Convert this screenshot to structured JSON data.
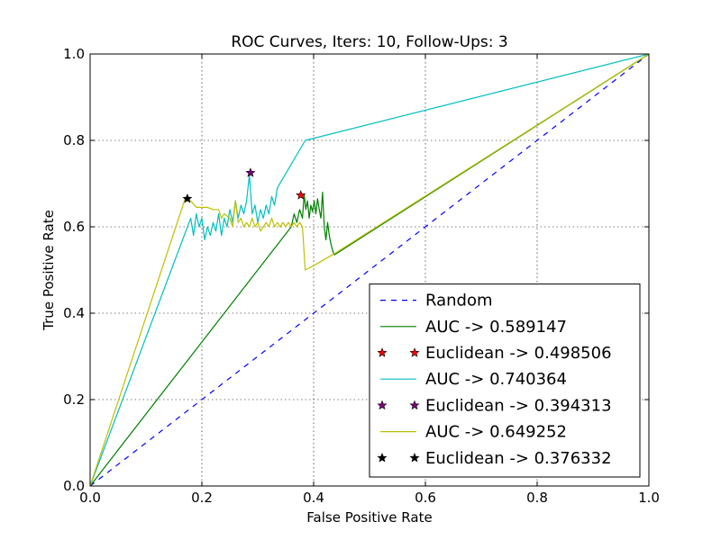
{
  "chart_data": {
    "type": "line",
    "title": "ROC Curves, Iters: 10, Follow-Ups: 3",
    "xlabel": "False Positive Rate",
    "ylabel": "True Positive Rate",
    "xlim": [
      0.0,
      1.0
    ],
    "ylim": [
      0.0,
      1.0
    ],
    "xticks": [
      "0.0",
      "0.2",
      "0.4",
      "0.6",
      "0.8",
      "1.0"
    ],
    "yticks": [
      "0.0",
      "0.2",
      "0.4",
      "0.6",
      "0.8",
      "1.0"
    ],
    "grid": true,
    "legend_position": "lower-right",
    "series": [
      {
        "name": "Random",
        "kind": "line",
        "dash": "dashed",
        "color": "#0000ff",
        "x": [
          0.0,
          1.0
        ],
        "y": [
          0.0,
          1.0
        ]
      },
      {
        "name": "AUC -> 0.589147",
        "kind": "line",
        "color": "#008000",
        "x": [
          0.0,
          0.36,
          0.365,
          0.37,
          0.375,
          0.38,
          0.383,
          0.386,
          0.389,
          0.392,
          0.395,
          0.398,
          0.401,
          0.404,
          0.407,
          0.41,
          0.413,
          0.416,
          0.419,
          0.422,
          0.425,
          0.428,
          0.431,
          0.434,
          0.437,
          1.0
        ],
        "y": [
          0.0,
          0.6,
          0.63,
          0.61,
          0.64,
          0.62,
          0.675,
          0.64,
          0.66,
          0.62,
          0.65,
          0.635,
          0.66,
          0.63,
          0.665,
          0.64,
          0.62,
          0.68,
          0.6,
          0.57,
          0.61,
          0.58,
          0.56,
          0.545,
          0.535,
          1.0
        ]
      },
      {
        "name": "Euclidean -> 0.498506",
        "kind": "marker",
        "marker": "star",
        "color": "#ff0000",
        "x": [
          0.377
        ],
        "y": [
          0.673
        ]
      },
      {
        "name": "AUC -> 0.740364",
        "kind": "line",
        "color": "#00bfbf",
        "x": [
          0.0,
          0.18,
          0.185,
          0.19,
          0.195,
          0.2,
          0.205,
          0.21,
          0.215,
          0.22,
          0.225,
          0.23,
          0.235,
          0.24,
          0.245,
          0.25,
          0.255,
          0.26,
          0.265,
          0.27,
          0.275,
          0.28,
          0.285,
          0.29,
          0.295,
          0.3,
          0.305,
          0.31,
          0.315,
          0.32,
          0.325,
          0.33,
          0.335,
          0.385,
          1.0
        ],
        "y": [
          0.0,
          0.62,
          0.58,
          0.63,
          0.6,
          0.62,
          0.57,
          0.6,
          0.58,
          0.61,
          0.59,
          0.63,
          0.58,
          0.62,
          0.6,
          0.64,
          0.61,
          0.66,
          0.62,
          0.65,
          0.63,
          0.66,
          0.72,
          0.63,
          0.65,
          0.61,
          0.64,
          0.62,
          0.65,
          0.63,
          0.67,
          0.65,
          0.69,
          0.8,
          1.0
        ]
      },
      {
        "name": "Euclidean -> 0.394313",
        "kind": "marker",
        "marker": "star",
        "color": "#800080",
        "x": [
          0.287
        ],
        "y": [
          0.725
        ]
      },
      {
        "name": "AUC -> 0.649252",
        "kind": "line",
        "color": "#bfbf00",
        "x": [
          0.0,
          0.17,
          0.18,
          0.19,
          0.2,
          0.21,
          0.22,
          0.23,
          0.235,
          0.24,
          0.25,
          0.255,
          0.26,
          0.265,
          0.27,
          0.275,
          0.28,
          0.285,
          0.29,
          0.295,
          0.3,
          0.305,
          0.31,
          0.315,
          0.32,
          0.325,
          0.33,
          0.335,
          0.34,
          0.345,
          0.35,
          0.355,
          0.36,
          0.365,
          0.37,
          0.375,
          0.38,
          0.385,
          0.4,
          0.44,
          1.0
        ],
        "y": [
          0.0,
          0.665,
          0.66,
          0.645,
          0.645,
          0.645,
          0.64,
          0.64,
          0.62,
          0.63,
          0.62,
          0.6,
          0.66,
          0.61,
          0.62,
          0.6,
          0.61,
          0.6,
          0.62,
          0.6,
          0.61,
          0.59,
          0.6,
          0.61,
          0.6,
          0.62,
          0.6,
          0.61,
          0.6,
          0.61,
          0.6,
          0.61,
          0.6,
          0.61,
          0.6,
          0.61,
          0.6,
          0.5,
          0.51,
          0.54,
          1.0
        ]
      },
      {
        "name": "Euclidean -> 0.376332",
        "kind": "marker",
        "marker": "star",
        "color": "#000000",
        "x": [
          0.174
        ],
        "y": [
          0.665
        ]
      }
    ]
  }
}
